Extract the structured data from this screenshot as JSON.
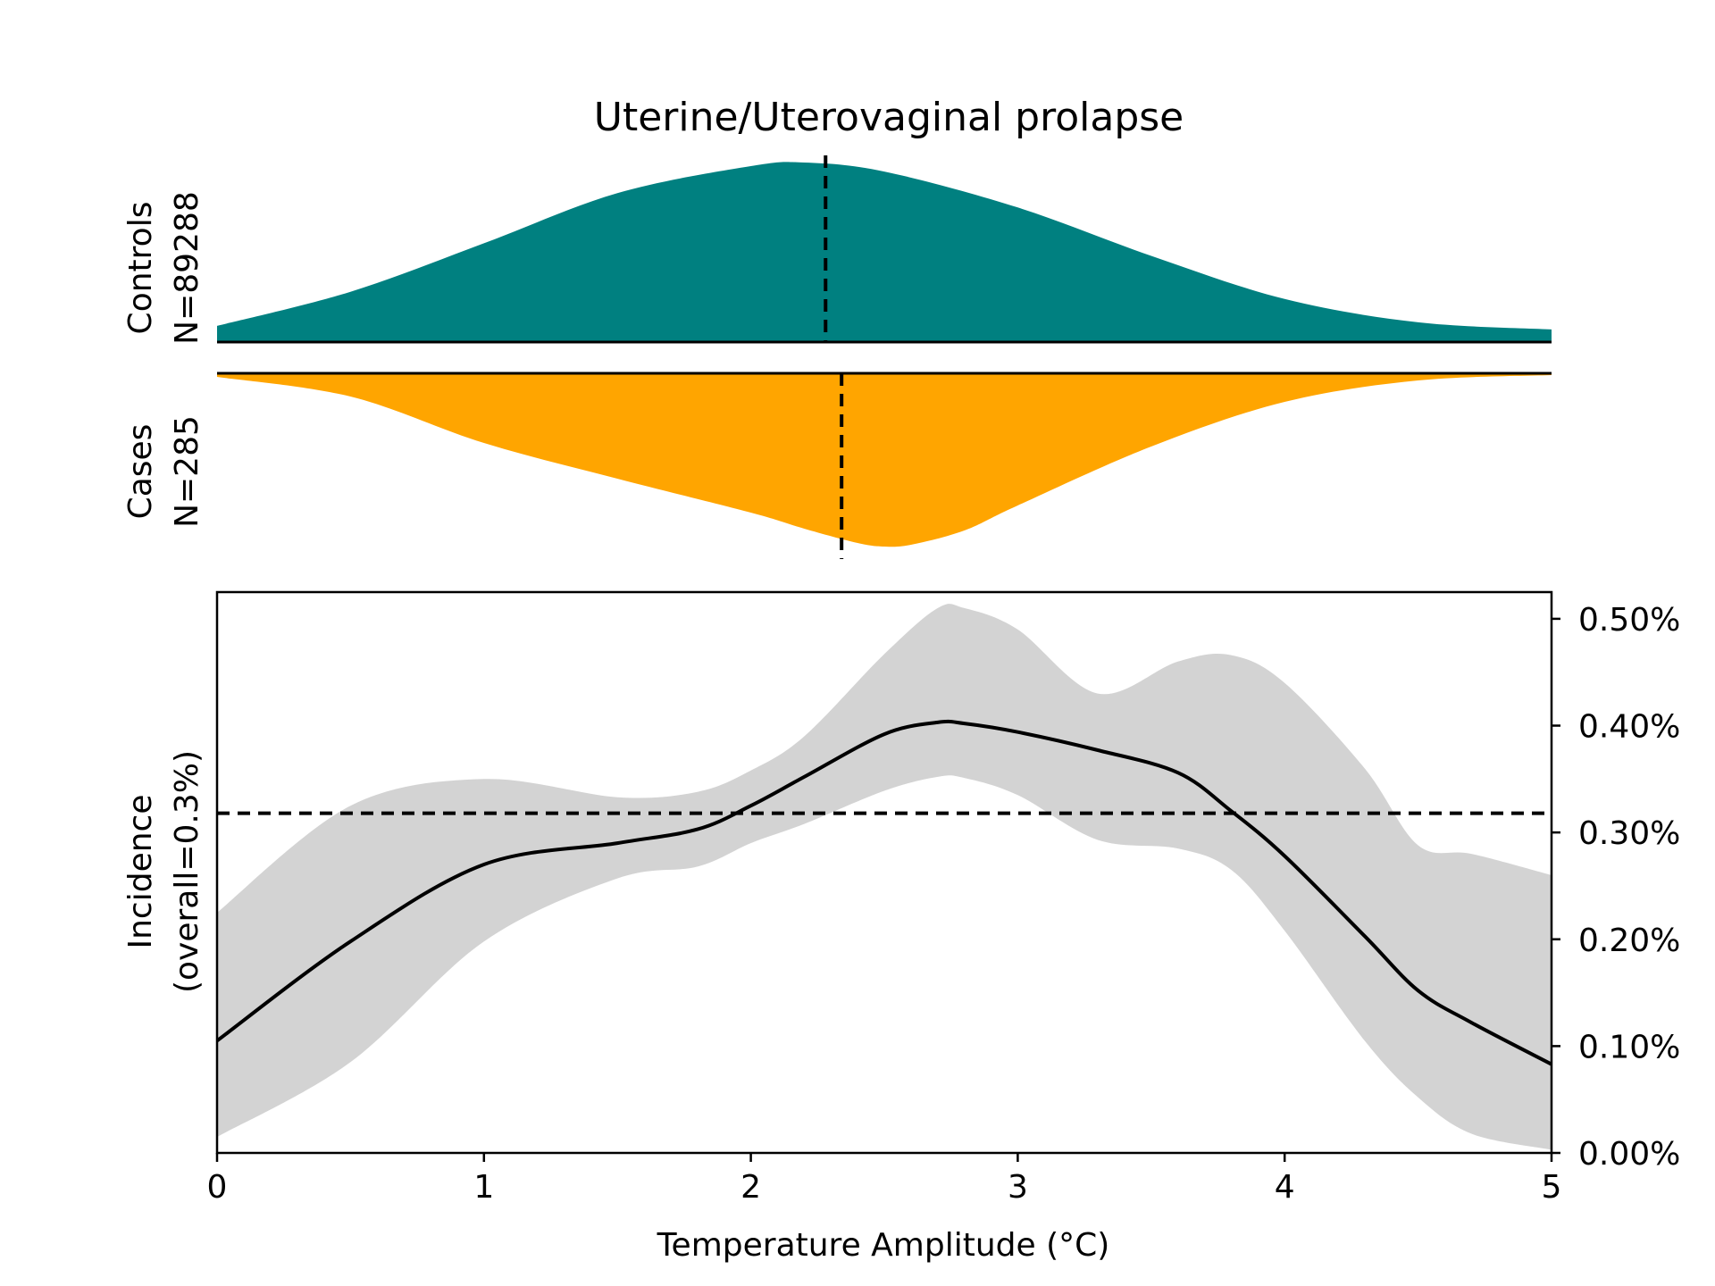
{
  "title": "Uterine/Uterovaginal prolapse",
  "colors": {
    "controls": "#008080",
    "cases": "#FFA500",
    "ci_band": "#D3D3D3",
    "line": "#000000"
  },
  "density_panels": {
    "controls": {
      "label": "Controls",
      "n_label": "N=89288",
      "median": 2.28,
      "x": [
        0,
        0.5,
        1.0,
        1.5,
        2.0,
        2.2,
        2.5,
        3.0,
        3.5,
        4.0,
        4.5,
        5.0
      ],
      "density": [
        0.09,
        0.28,
        0.55,
        0.83,
        0.98,
        1.0,
        0.95,
        0.75,
        0.48,
        0.24,
        0.11,
        0.07
      ]
    },
    "cases": {
      "label": "Cases",
      "n_label": "N=285",
      "median": 2.34,
      "x": [
        0,
        0.5,
        1.0,
        1.5,
        2.0,
        2.2,
        2.4,
        2.5,
        2.6,
        2.8,
        3.0,
        3.5,
        4.0,
        4.5,
        5.0
      ],
      "density": [
        0.02,
        0.13,
        0.39,
        0.59,
        0.78,
        0.87,
        0.95,
        0.97,
        0.96,
        0.88,
        0.74,
        0.41,
        0.16,
        0.04,
        0.01
      ]
    }
  },
  "chart_data": {
    "type": "line",
    "xlabel": "Temperature Amplitude (°C)",
    "ylabel": "Incidence\n(overall=0.3%)",
    "xlim": [
      0,
      5
    ],
    "ylim": [
      0,
      0.00525
    ],
    "x_ticks": [
      0,
      1,
      2,
      3,
      4,
      5
    ],
    "x_tick_labels": [
      "0",
      "1",
      "2",
      "3",
      "4",
      "5"
    ],
    "y_ticks": [
      0,
      0.001,
      0.002,
      0.003,
      0.004,
      0.005
    ],
    "y_tick_labels": [
      "0.00%",
      "0.10%",
      "0.20%",
      "0.30%",
      "0.40%",
      "0.50%"
    ],
    "y_axis_side": "right",
    "reference_line": 0.00318,
    "x": [
      0,
      0.5,
      1.0,
      1.5,
      1.8,
      2.0,
      2.2,
      2.5,
      2.7,
      2.8,
      3.0,
      3.3,
      3.6,
      3.8,
      4.0,
      4.3,
      4.5,
      4.7,
      5.0
    ],
    "mean": [
      0.00105,
      0.00198,
      0.0027,
      0.0029,
      0.00303,
      0.00325,
      0.00352,
      0.00392,
      0.00403,
      0.00402,
      0.00394,
      0.00377,
      0.00356,
      0.0032,
      0.00278,
      0.00203,
      0.00152,
      0.00122,
      0.00083
    ],
    "upper": [
      0.00225,
      0.00325,
      0.0035,
      0.00333,
      0.00338,
      0.00358,
      0.0039,
      0.00467,
      0.0051,
      0.0051,
      0.0049,
      0.0043,
      0.0046,
      0.00466,
      0.0044,
      0.0036,
      0.00288,
      0.0028,
      0.0026
    ],
    "lower": [
      0.00015,
      0.00085,
      0.00198,
      0.00257,
      0.00268,
      0.0029,
      0.00308,
      0.00339,
      0.00352,
      0.00351,
      0.00335,
      0.00293,
      0.00285,
      0.00265,
      0.00208,
      0.00105,
      0.00052,
      0.00018,
      3e-05
    ]
  }
}
